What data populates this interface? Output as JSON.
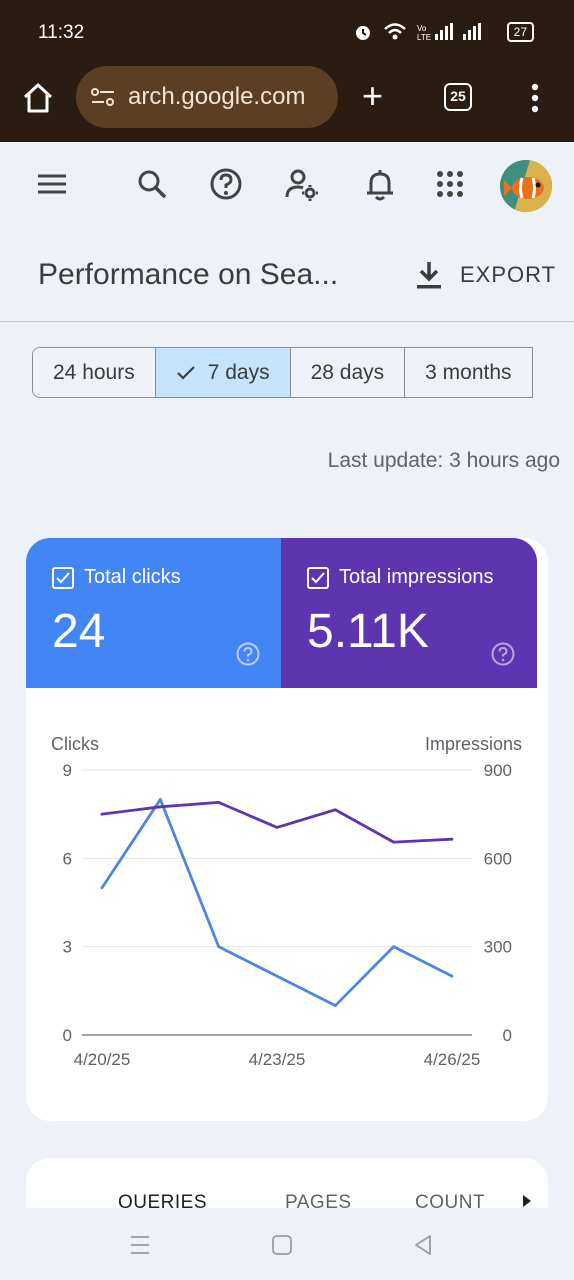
{
  "status_bar": {
    "time": "11:32",
    "battery": "27"
  },
  "browser": {
    "url": "arch.google.com",
    "tab_count": "25"
  },
  "page": {
    "title": "Performance on Sea...",
    "export_label": "EXPORT"
  },
  "date_range": {
    "options": [
      "24 hours",
      "7 days",
      "28 days",
      "3 months"
    ],
    "selected": "7 days"
  },
  "last_update": "Last update: 3 hours ago",
  "metrics": {
    "clicks": {
      "label": "Total clicks",
      "value": "24",
      "color": "#4285f4",
      "checked": true
    },
    "impressions": {
      "label": "Total impressions",
      "value": "5.11K",
      "color": "#5e35b1",
      "checked": true
    }
  },
  "chart_data": {
    "type": "line",
    "x": [
      "4/20/25",
      "4/21/25",
      "4/22/25",
      "4/23/25",
      "4/24/25",
      "4/25/25",
      "4/26/25"
    ],
    "x_tick_labels": [
      "4/20/25",
      "4/23/25",
      "4/26/25"
    ],
    "left_axis": {
      "title": "Clicks",
      "ticks": [
        0,
        3,
        6,
        9
      ],
      "range": [
        0,
        9
      ]
    },
    "right_axis": {
      "title": "Impressions",
      "ticks": [
        0,
        300,
        600,
        900
      ],
      "range": [
        0,
        900
      ]
    },
    "series": [
      {
        "name": "Clicks",
        "axis": "left",
        "color": "#4f86dd",
        "values": [
          5,
          8,
          3,
          2,
          1,
          3,
          2
        ]
      },
      {
        "name": "Impressions",
        "axis": "right",
        "color": "#5e35b1",
        "values": [
          750,
          775,
          790,
          705,
          765,
          655,
          665
        ]
      }
    ],
    "grid": true
  },
  "tabs": [
    "QUERIES",
    "PAGES",
    "COUNT"
  ]
}
